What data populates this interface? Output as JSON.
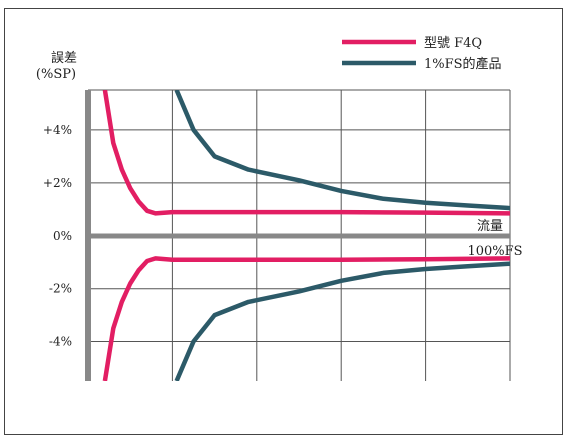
{
  "chart_data": {
    "type": "line",
    "ylabel": "誤差",
    "ylabel_unit": "(%SP)",
    "xlabel": "流量",
    "xlabel_end": "100%FS",
    "ylim": [
      -5.5,
      5.5
    ],
    "xlim": [
      0,
      100
    ],
    "y_ticks": [
      {
        "value": 4,
        "label": "+4%"
      },
      {
        "value": 2,
        "label": "+2%"
      },
      {
        "value": 0,
        "label": "0%"
      },
      {
        "value": -2,
        "label": "-2%"
      },
      {
        "value": -4,
        "label": "-4%"
      }
    ],
    "x_grid": [
      20,
      40,
      60,
      80
    ],
    "grid": true,
    "legend_position": "top-right",
    "series": [
      {
        "name": "型號 F4Q",
        "color": "#e21e63",
        "upper": [
          [
            4,
            5.5
          ],
          [
            5,
            4.5
          ],
          [
            6,
            3.5
          ],
          [
            8,
            2.5
          ],
          [
            10,
            1.8
          ],
          [
            12,
            1.3
          ],
          [
            14,
            0.95
          ],
          [
            16,
            0.85
          ],
          [
            20,
            0.9
          ],
          [
            40,
            0.9
          ],
          [
            60,
            0.9
          ],
          [
            80,
            0.88
          ],
          [
            100,
            0.85
          ]
        ],
        "lower": [
          [
            4,
            -5.5
          ],
          [
            5,
            -4.5
          ],
          [
            6,
            -3.5
          ],
          [
            8,
            -2.5
          ],
          [
            10,
            -1.8
          ],
          [
            12,
            -1.3
          ],
          [
            14,
            -0.95
          ],
          [
            16,
            -0.85
          ],
          [
            20,
            -0.9
          ],
          [
            40,
            -0.9
          ],
          [
            60,
            -0.9
          ],
          [
            80,
            -0.88
          ],
          [
            100,
            -0.85
          ]
        ]
      },
      {
        "name": "1%FS的產品",
        "color": "#2c5a68",
        "upper": [
          [
            21,
            5.5
          ],
          [
            25,
            4.0
          ],
          [
            30,
            3.0
          ],
          [
            38,
            2.5
          ],
          [
            50,
            2.1
          ],
          [
            60,
            1.7
          ],
          [
            70,
            1.4
          ],
          [
            80,
            1.25
          ],
          [
            90,
            1.15
          ],
          [
            100,
            1.05
          ]
        ],
        "lower": [
          [
            21,
            -5.5
          ],
          [
            25,
            -4.0
          ],
          [
            30,
            -3.0
          ],
          [
            38,
            -2.5
          ],
          [
            50,
            -2.1
          ],
          [
            60,
            -1.7
          ],
          [
            70,
            -1.4
          ],
          [
            80,
            -1.25
          ],
          [
            90,
            -1.15
          ],
          [
            100,
            -1.05
          ]
        ]
      }
    ]
  }
}
